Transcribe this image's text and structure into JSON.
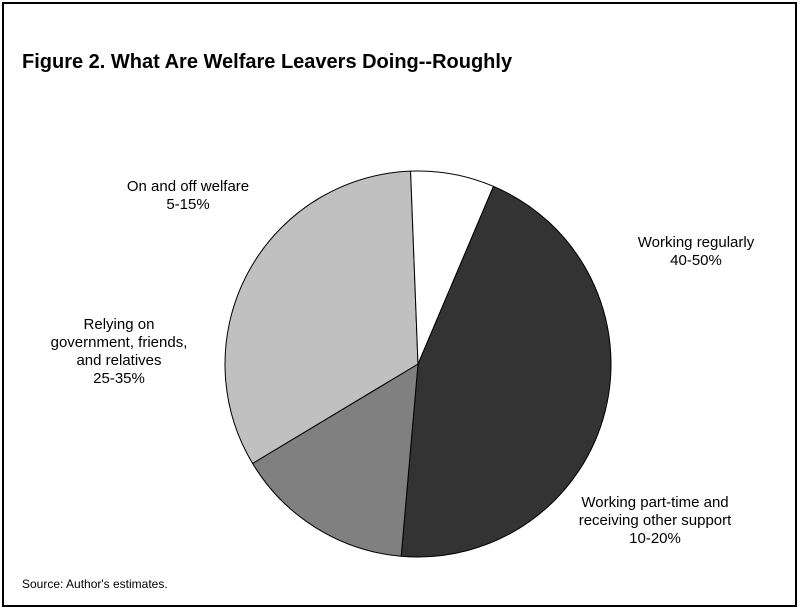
{
  "chart_data": {
    "type": "pie",
    "title": "Figure 2. What Are Welfare Leavers Doing--Roughly",
    "source": "Source: Author's estimates.",
    "slices": [
      {
        "label_lines": [
          "Working regularly",
          "40-50%"
        ],
        "value": 45,
        "color": "#333333"
      },
      {
        "label_lines": [
          "Working part-time and",
          "receiving other support",
          "10-20%"
        ],
        "value": 15,
        "color": "#808080"
      },
      {
        "label_lines": [
          "Relying on",
          "government, friends,",
          "and relatives",
          "25-35%"
        ],
        "value": 33,
        "color": "#c0c0c0"
      },
      {
        "label_lines": [
          "On and off welfare",
          "5-15%"
        ],
        "value": 7,
        "color": "#ffffff"
      }
    ]
  }
}
